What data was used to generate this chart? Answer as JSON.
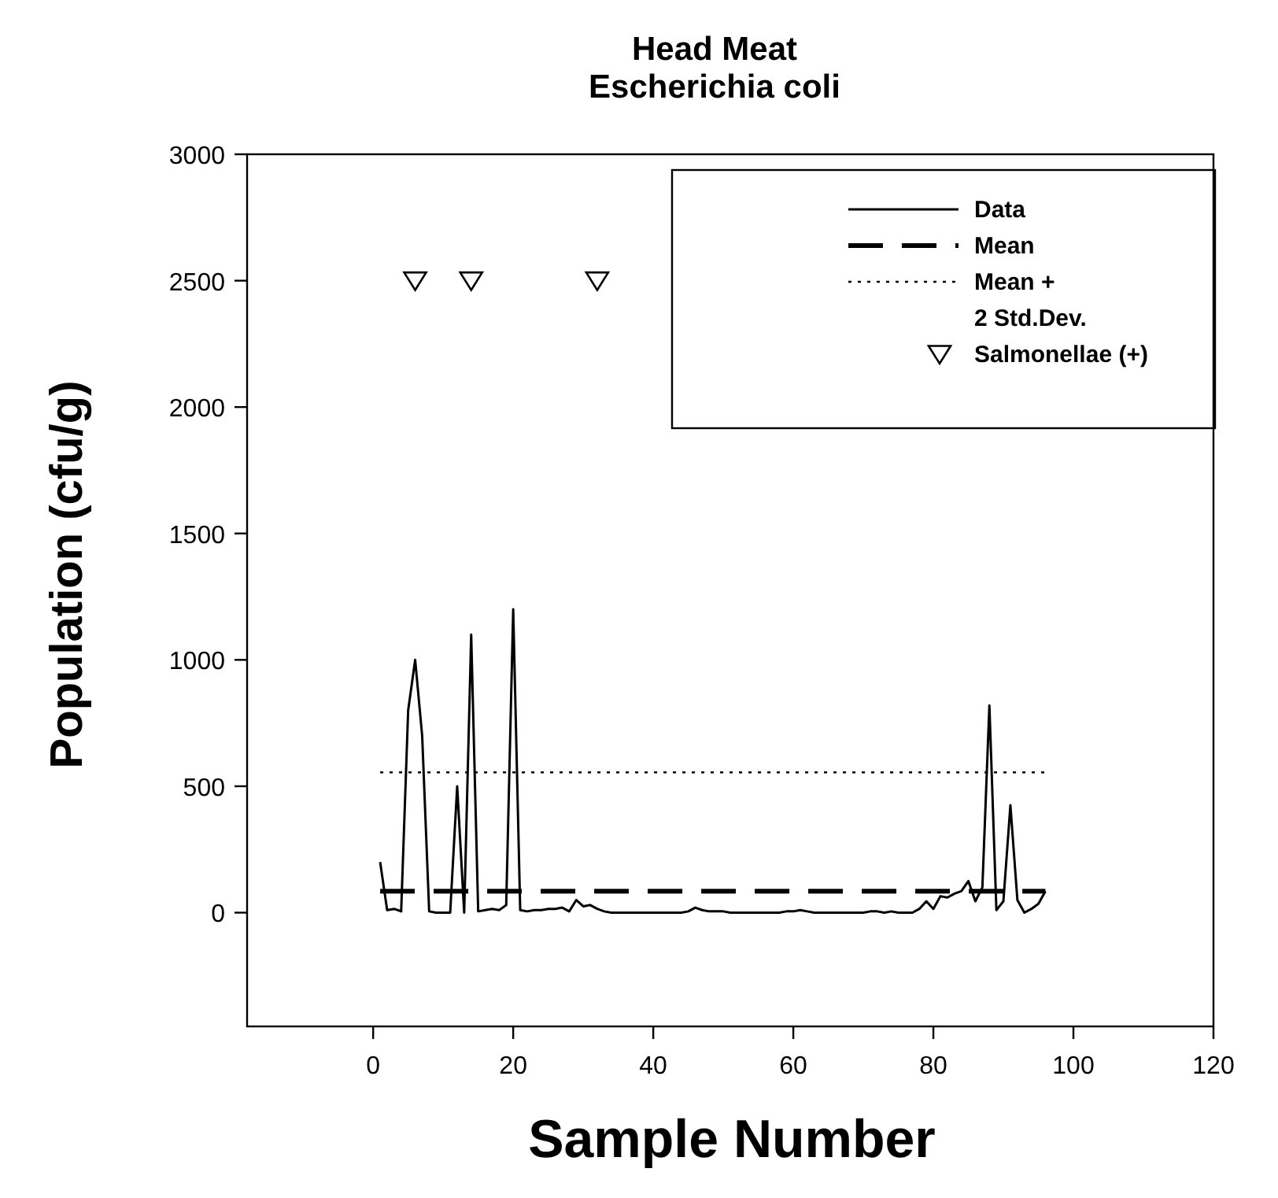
{
  "chart_data": {
    "type": "line",
    "title": "Head Meat",
    "subtitle": "Escherichia coli",
    "xlabel": "Sample Number",
    "ylabel": "Population (cfu/g)",
    "xlim": [
      -18,
      120
    ],
    "xticks": [
      0,
      20,
      40,
      60,
      80,
      100,
      120
    ],
    "ylim": [
      -450,
      3000
    ],
    "yticks": [
      0,
      500,
      1000,
      1500,
      2000,
      2500,
      3000
    ],
    "grid": false,
    "legend": "top right",
    "series": [
      {
        "name": "Data",
        "line_style": "solid",
        "color": "#000000",
        "x": [
          1,
          2,
          3,
          4,
          5,
          6,
          7,
          8,
          9,
          10,
          11,
          12,
          13,
          14,
          15,
          16,
          17,
          18,
          19,
          20,
          21,
          22,
          23,
          24,
          25,
          26,
          27,
          28,
          29,
          30,
          31,
          32,
          33,
          34,
          35,
          36,
          37,
          38,
          39,
          40,
          41,
          42,
          43,
          44,
          45,
          46,
          47,
          48,
          49,
          50,
          51,
          52,
          53,
          54,
          55,
          56,
          57,
          58,
          59,
          60,
          61,
          62,
          63,
          64,
          65,
          66,
          67,
          68,
          69,
          70,
          71,
          72,
          73,
          74,
          75,
          76,
          77,
          78,
          79,
          80,
          81,
          82,
          83,
          84,
          85,
          86,
          87,
          88,
          89,
          90,
          91,
          92,
          93,
          94,
          95,
          96
        ],
        "values": [
          200,
          10,
          15,
          5,
          800,
          1000,
          700,
          5,
          0,
          0,
          0,
          500,
          0,
          1100,
          5,
          10,
          15,
          10,
          30,
          1200,
          10,
          5,
          10,
          10,
          15,
          15,
          20,
          5,
          50,
          25,
          30,
          15,
          5,
          0,
          0,
          0,
          0,
          0,
          0,
          0,
          0,
          0,
          0,
          0,
          5,
          20,
          10,
          5,
          5,
          5,
          0,
          0,
          0,
          0,
          0,
          0,
          0,
          0,
          5,
          5,
          10,
          5,
          0,
          0,
          0,
          0,
          0,
          0,
          0,
          0,
          5,
          5,
          0,
          5,
          0,
          0,
          0,
          15,
          45,
          15,
          65,
          60,
          75,
          85,
          125,
          45,
          100,
          820,
          10,
          45,
          425,
          50,
          0,
          15,
          35,
          85
        ]
      },
      {
        "name": "Mean",
        "type": "line",
        "line_style": "dashed",
        "color": "#000000",
        "x": [
          1,
          96
        ],
        "values": [
          85,
          85
        ]
      },
      {
        "name": "Mean +\n2 Std.Dev.",
        "type": "line",
        "line_style": "dotted",
        "color": "#000000",
        "x": [
          1,
          96
        ],
        "values": [
          555,
          555
        ]
      },
      {
        "name": "Salmonellae (+)",
        "type": "scatter",
        "marker": "triangle",
        "color": "#000000",
        "x": [
          6,
          14,
          32
        ],
        "values": [
          2500,
          2500,
          2500
        ]
      }
    ]
  }
}
